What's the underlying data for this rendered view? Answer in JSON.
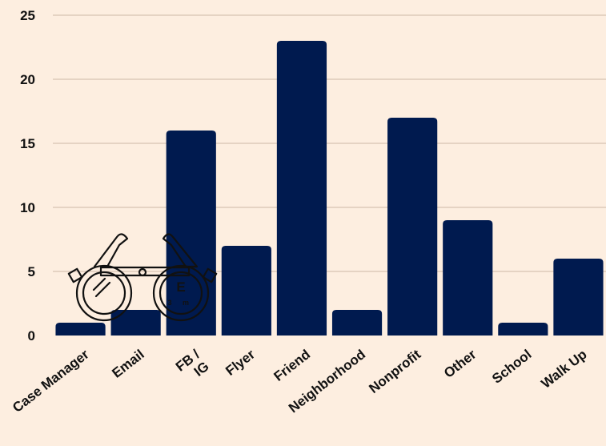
{
  "chart_data": {
    "type": "bar",
    "categories": [
      "Case Manager",
      "Email",
      "FB / IG",
      "Flyer",
      "Friend",
      "Neighborhood",
      "Nonprofit",
      "Other",
      "School",
      "Walk Up"
    ],
    "category_lines": [
      [
        "Case Manager"
      ],
      [
        "Email"
      ],
      [
        "FB /",
        "IG"
      ],
      [
        "Flyer"
      ],
      [
        "Friend"
      ],
      [
        "Neighborhood"
      ],
      [
        "Nonprofit"
      ],
      [
        "Other"
      ],
      [
        "School"
      ],
      [
        "Walk Up"
      ]
    ],
    "values": [
      1,
      2,
      16,
      7,
      23,
      2,
      17,
      9,
      1,
      6
    ],
    "ylim": [
      0,
      25
    ],
    "yticks": [
      0,
      5,
      10,
      15,
      20,
      25
    ],
    "grid": true,
    "legend": "none",
    "colors": {
      "background": "#fdeee0",
      "bar": "#001a4f",
      "grid": "#cdb8a6",
      "text": "#111111"
    }
  },
  "decoration": {
    "icon": "eye-exam-glasses-icon",
    "letters": [
      "E",
      "3",
      "m"
    ]
  }
}
